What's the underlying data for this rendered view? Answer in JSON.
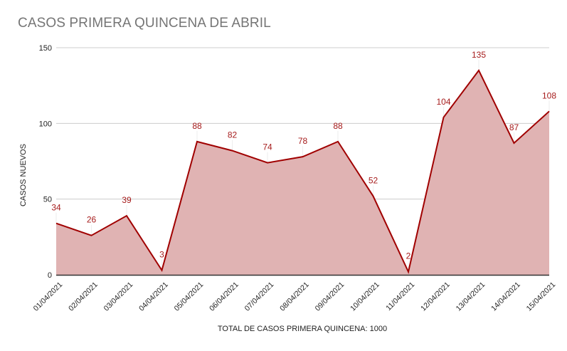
{
  "chart_data": {
    "type": "area",
    "title": "CASOS PRIMERA QUINCENA DE ABRIL",
    "xlabel": "TOTAL DE CASOS PRIMERA QUINCENA: 1000",
    "ylabel": "CASOS NUEVOS",
    "ylim": [
      0,
      150
    ],
    "yticks": [
      0,
      50,
      100,
      150
    ],
    "grid": true,
    "legend": null,
    "categories": [
      "01/04/2021",
      "02/04/2021",
      "03/04/2021",
      "04/04/2021",
      "05/04/2021",
      "06/04/2021",
      "07/04/2021",
      "08/04/2021",
      "09/04/2021",
      "10/04/2021",
      "11/04/2021",
      "12/04/2021",
      "13/04/2021",
      "14/04/2021",
      "15/04/2021"
    ],
    "series": [
      {
        "name": "Casos nuevos",
        "values": [
          34,
          26,
          39,
          3,
          88,
          82,
          74,
          78,
          88,
          52,
          2,
          104,
          135,
          87,
          108
        ]
      }
    ],
    "colors": {
      "line": "#a00000",
      "fill": "#e0b3b3",
      "label": "#a61c1c",
      "grid": "#cccccc",
      "axis": "#333333",
      "title": "#757575"
    }
  }
}
